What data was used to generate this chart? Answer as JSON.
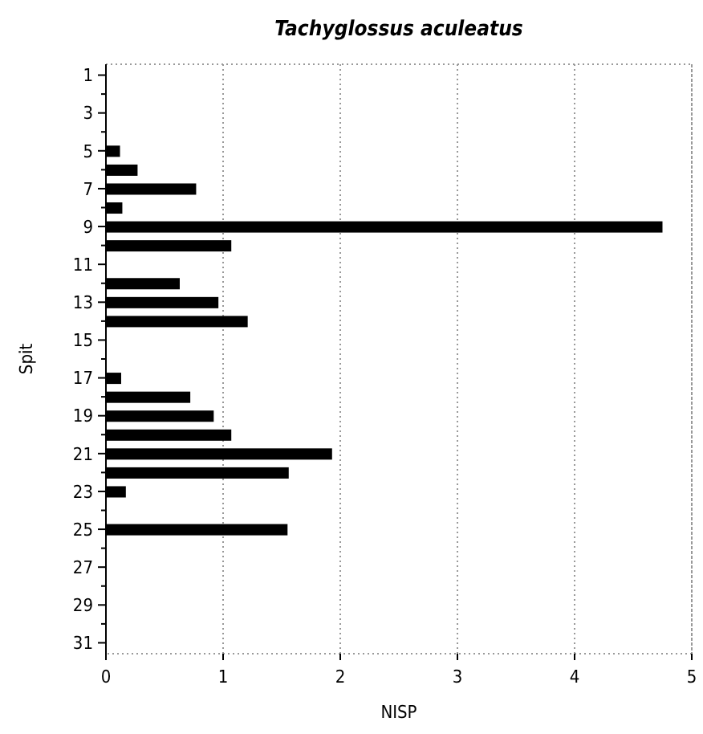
{
  "chart_data": {
    "type": "bar",
    "orientation": "horizontal",
    "title": "Tachyglossus aculeatus",
    "xlabel": "NISP",
    "ylabel": "Spit",
    "categories": [
      "1",
      null,
      "3",
      null,
      "5",
      null,
      "7",
      null,
      "9",
      null,
      "11",
      null,
      "13",
      null,
      "15",
      null,
      "17",
      null,
      "19",
      null,
      "21",
      null,
      "23",
      null,
      "25",
      null,
      "27",
      null,
      "29",
      null,
      "31"
    ],
    "values": [
      0,
      0,
      0,
      0,
      0.12,
      0.27,
      0.77,
      0.14,
      4.75,
      1.07,
      0,
      0.63,
      0.96,
      1.21,
      0,
      0,
      0.13,
      0.72,
      0.92,
      1.07,
      1.93,
      1.56,
      0.17,
      0,
      1.55,
      0,
      0,
      0,
      0,
      0,
      0
    ],
    "color": "#000000",
    "xlim": [
      0,
      5
    ],
    "xticks": [
      0,
      1,
      2,
      3,
      4,
      5
    ],
    "grid": "x"
  }
}
